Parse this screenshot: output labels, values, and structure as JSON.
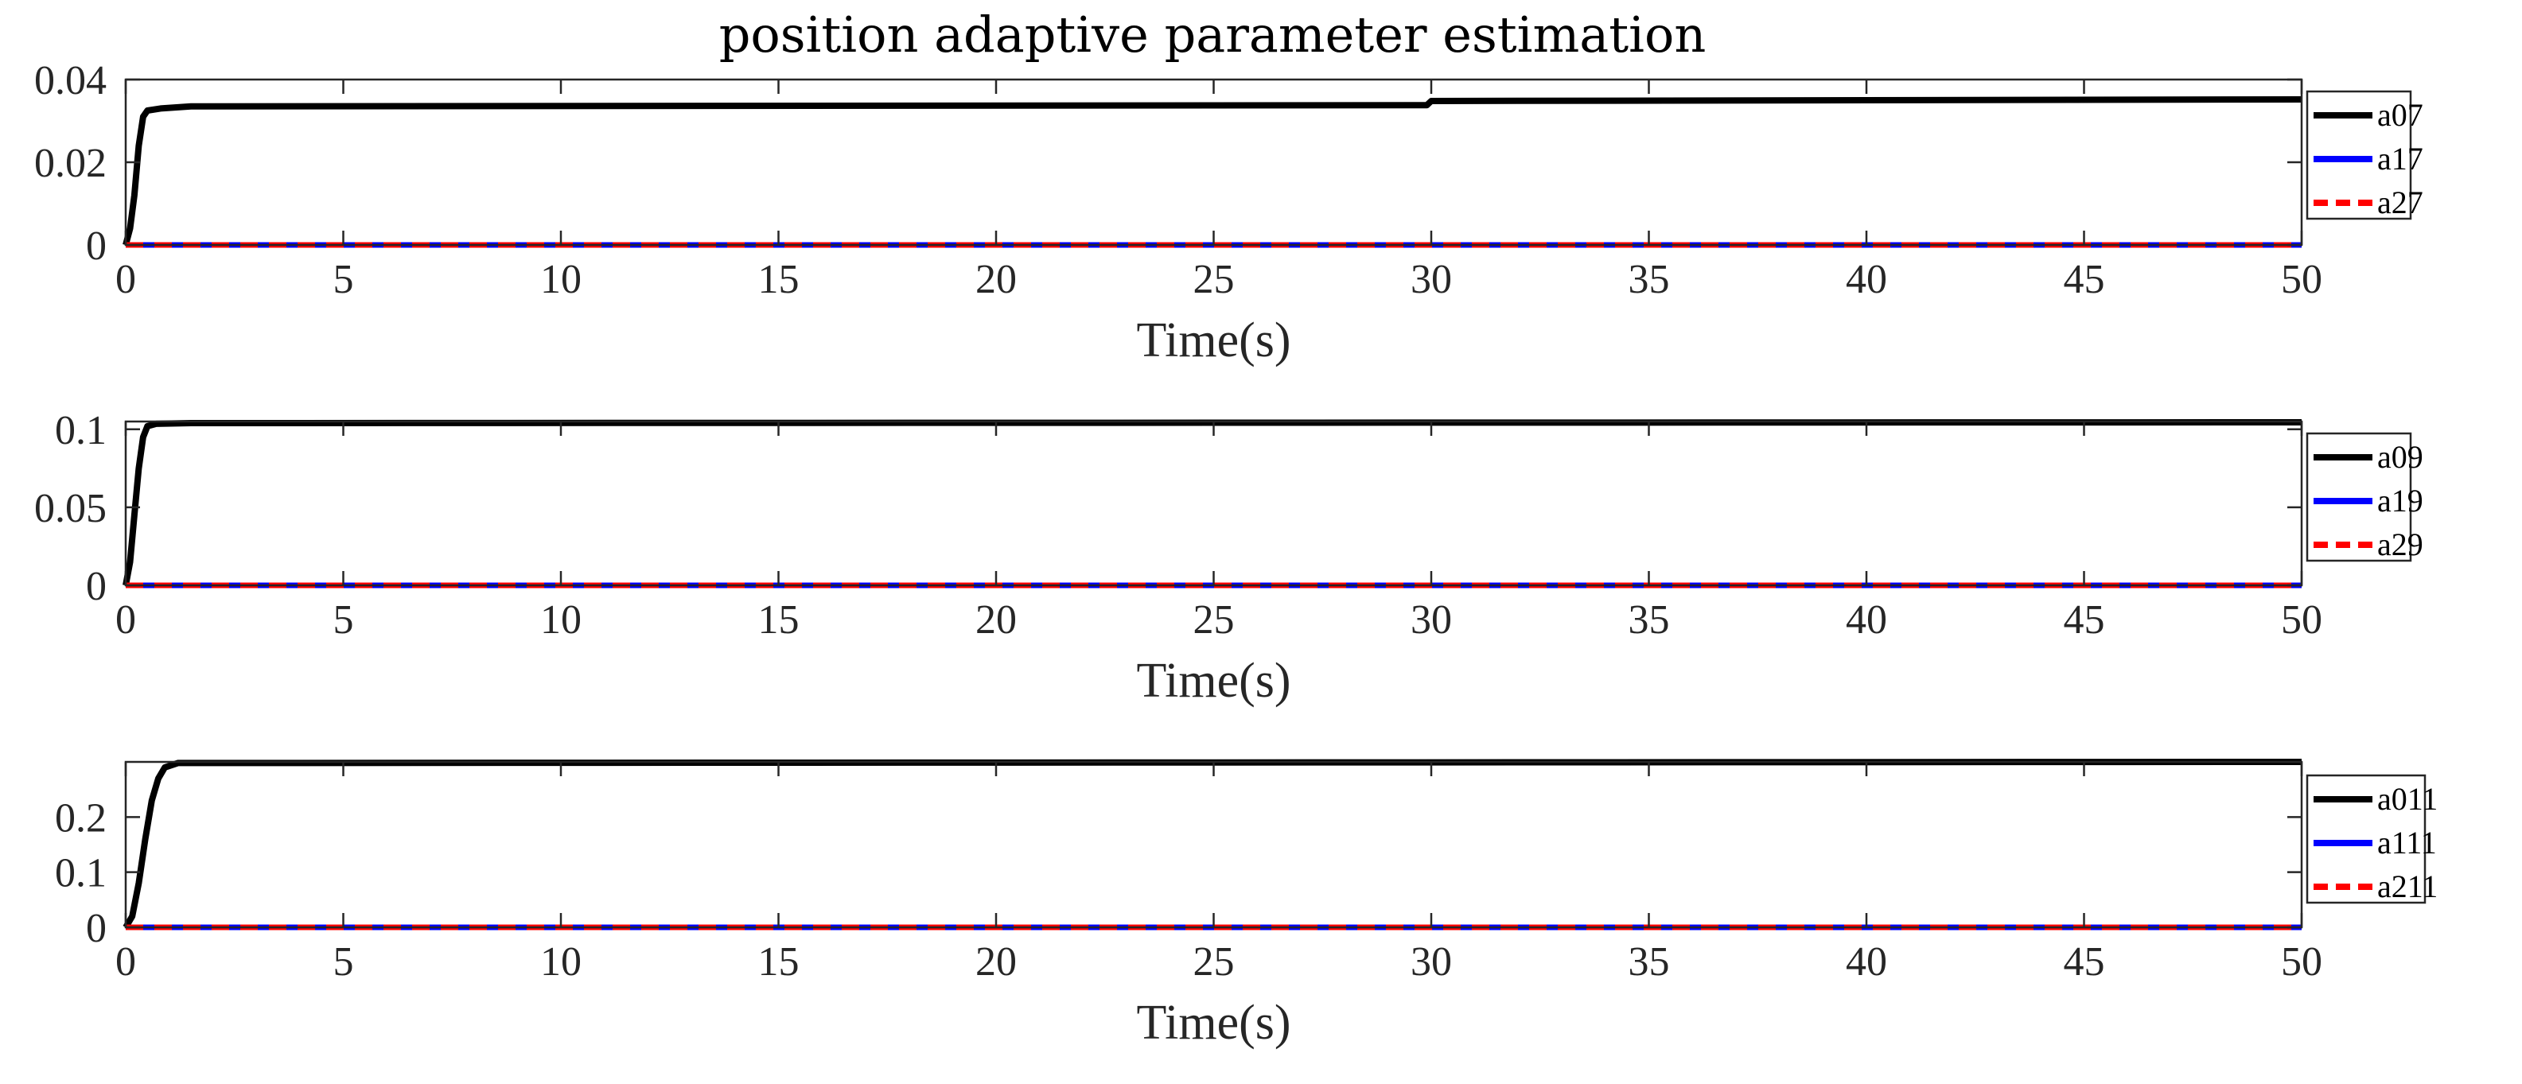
{
  "figure_title": "position adaptive parameter estimation",
  "colors": {
    "black": "#000000",
    "blue": "#0000ff",
    "red": "#ff0000",
    "axis": "#262626"
  },
  "chart_data": [
    {
      "type": "line",
      "title": "position adaptive parameter estimation",
      "xlabel": "Time(s)",
      "ylabel": "",
      "xlim": [
        0,
        50
      ],
      "ylim": [
        0,
        0.04
      ],
      "xticks": [
        0,
        5,
        10,
        15,
        20,
        25,
        30,
        35,
        40,
        45,
        50
      ],
      "xtick_labels": [
        "0",
        "5",
        "10",
        "15",
        "20",
        "25",
        "30",
        "35",
        "40",
        "45",
        "50"
      ],
      "yticks": [
        0,
        0.02,
        0.04
      ],
      "ytick_labels": [
        "0",
        "0.02",
        "0.04"
      ],
      "legend_position": "outside-right",
      "series": [
        {
          "name": "a07",
          "color": "#000000",
          "style": "solid",
          "points": [
            [
              0,
              0
            ],
            [
              0.1,
              0.004
            ],
            [
              0.2,
              0.012
            ],
            [
              0.3,
              0.024
            ],
            [
              0.4,
              0.031
            ],
            [
              0.5,
              0.0325
            ],
            [
              0.8,
              0.033
            ],
            [
              1.5,
              0.0335
            ],
            [
              29.9,
              0.0338
            ],
            [
              30,
              0.0348
            ],
            [
              40,
              0.035
            ],
            [
              50,
              0.0352
            ]
          ]
        },
        {
          "name": "a17",
          "color": "#0000ff",
          "style": "solid",
          "points": [
            [
              0,
              0
            ],
            [
              50,
              0
            ]
          ]
        },
        {
          "name": "a27",
          "color": "#ff0000",
          "style": "dashed",
          "points": [
            [
              0,
              0
            ],
            [
              50,
              0
            ]
          ]
        }
      ]
    },
    {
      "type": "line",
      "title": "",
      "xlabel": "Time(s)",
      "ylabel": "",
      "xlim": [
        0,
        50
      ],
      "ylim": [
        0,
        0.105
      ],
      "xticks": [
        0,
        5,
        10,
        15,
        20,
        25,
        30,
        35,
        40,
        45,
        50
      ],
      "xtick_labels": [
        "0",
        "5",
        "10",
        "15",
        "20",
        "25",
        "30",
        "35",
        "40",
        "45",
        "50"
      ],
      "yticks": [
        0,
        0.05,
        0.1
      ],
      "ytick_labels": [
        "0",
        "0.05",
        "0.1"
      ],
      "legend_position": "outside-right",
      "series": [
        {
          "name": "a09",
          "color": "#000000",
          "style": "solid",
          "points": [
            [
              0,
              0
            ],
            [
              0.1,
              0.015
            ],
            [
              0.2,
              0.045
            ],
            [
              0.3,
              0.075
            ],
            [
              0.4,
              0.095
            ],
            [
              0.5,
              0.102
            ],
            [
              0.7,
              0.1035
            ],
            [
              1.5,
              0.104
            ],
            [
              50,
              0.1045
            ]
          ]
        },
        {
          "name": "a19",
          "color": "#0000ff",
          "style": "solid",
          "points": [
            [
              0,
              0
            ],
            [
              50,
              0
            ]
          ]
        },
        {
          "name": "a29",
          "color": "#ff0000",
          "style": "dashed",
          "points": [
            [
              0,
              0
            ],
            [
              50,
              0
            ]
          ]
        }
      ]
    },
    {
      "type": "line",
      "title": "",
      "xlabel": "Time(s)",
      "ylabel": "",
      "xlim": [
        0,
        50
      ],
      "ylim": [
        0,
        0.3
      ],
      "xticks": [
        0,
        5,
        10,
        15,
        20,
        25,
        30,
        35,
        40,
        45,
        50
      ],
      "xtick_labels": [
        "0",
        "5",
        "10",
        "15",
        "20",
        "25",
        "30",
        "35",
        "40",
        "45",
        "50"
      ],
      "yticks": [
        0,
        0.1,
        0.2
      ],
      "ytick_labels": [
        "0",
        "0.1",
        "0.2"
      ],
      "legend_position": "outside-right",
      "series": [
        {
          "name": "a011",
          "color": "#000000",
          "style": "solid",
          "points": [
            [
              0,
              0
            ],
            [
              0.15,
              0.02
            ],
            [
              0.3,
              0.08
            ],
            [
              0.45,
              0.16
            ],
            [
              0.6,
              0.23
            ],
            [
              0.75,
              0.27
            ],
            [
              0.9,
              0.29
            ],
            [
              1.2,
              0.298
            ],
            [
              50,
              0.3
            ]
          ]
        },
        {
          "name": "a111",
          "color": "#0000ff",
          "style": "solid",
          "points": [
            [
              0,
              0
            ],
            [
              50,
              0
            ]
          ]
        },
        {
          "name": "a211",
          "color": "#ff0000",
          "style": "dashed",
          "points": [
            [
              0,
              0
            ],
            [
              50,
              0
            ]
          ]
        }
      ]
    }
  ]
}
